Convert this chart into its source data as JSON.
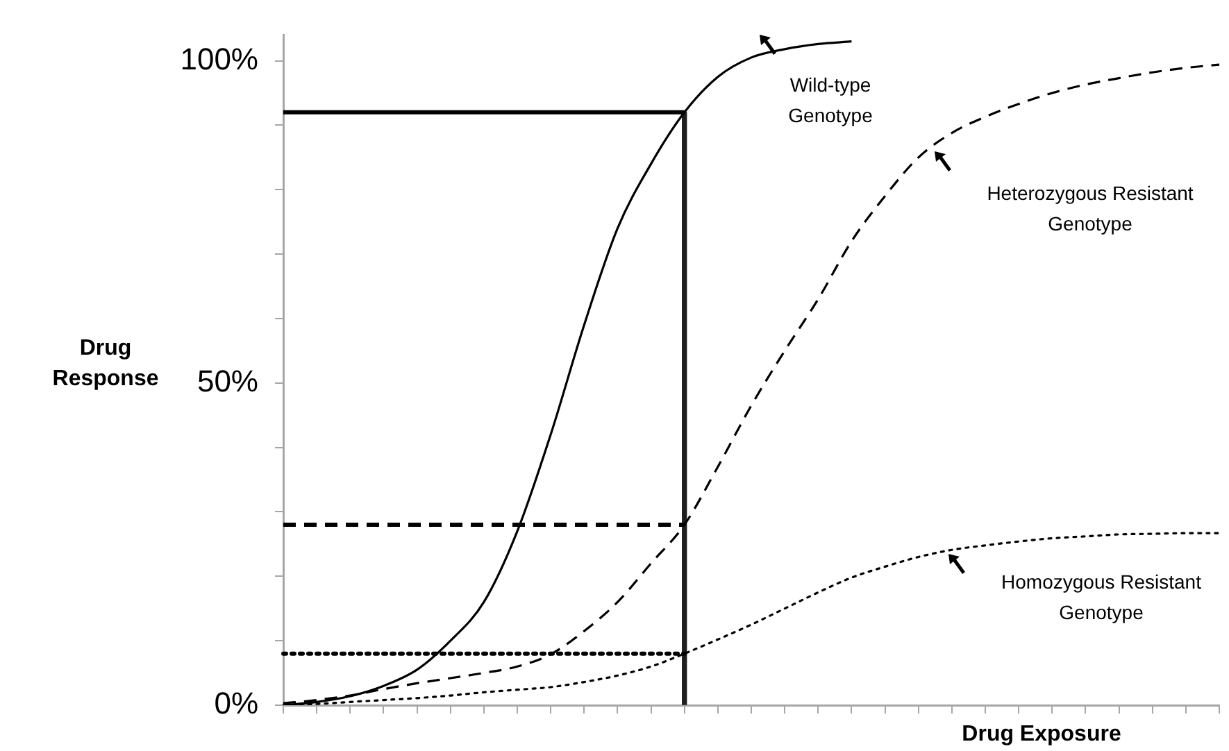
{
  "chart_data": {
    "type": "line",
    "xlabel": "Drug Exposure",
    "ylabel": "Drug Response",
    "categories": [
      null,
      null,
      null,
      null,
      null,
      null,
      null,
      null,
      null,
      null,
      null,
      null,
      null,
      null,
      null,
      null,
      null,
      null,
      null,
      null,
      null,
      null,
      null,
      null,
      null,
      null,
      null,
      null,
      null
    ],
    "ylim": [
      0,
      104
    ],
    "yticks": [
      {
        "value": 0,
        "label": "0%"
      },
      {
        "value": 10,
        "label": null
      },
      {
        "value": 20,
        "label": null
      },
      {
        "value": 30,
        "label": null
      },
      {
        "value": 40,
        "label": null
      },
      {
        "value": 50,
        "label": "50%"
      },
      {
        "value": 60,
        "label": null
      },
      {
        "value": 70,
        "label": null
      },
      {
        "value": 80,
        "label": null
      },
      {
        "value": 90,
        "label": null
      },
      {
        "value": 100,
        "label": "100%"
      }
    ],
    "grid": false,
    "legend": false,
    "marker": "none",
    "series": [
      {
        "color": "#000000",
        "line_style": "solid",
        "values": [
          0,
          0.5,
          1.4,
          3,
          5.5,
          10,
          16,
          27,
          42,
          59,
          74,
          84,
          92,
          97.5,
          100.5,
          101.8,
          102.6,
          103,
          null,
          null,
          null,
          null,
          null,
          null,
          null,
          null,
          null,
          null,
          null
        ]
      },
      {
        "color": "#000000",
        "line_style": "dashed",
        "values": [
          0.3,
          0.8,
          1.5,
          2.5,
          3.4,
          4.2,
          5,
          6,
          7.9,
          11.5,
          16,
          22,
          28,
          37,
          46.5,
          55,
          63,
          72,
          79,
          85,
          88.8,
          91.3,
          93.3,
          95,
          96.3,
          97.3,
          98.2,
          98.9,
          99.4
        ]
      },
      {
        "color": "#000000",
        "line_style": "dotted",
        "values": [
          0,
          0.2,
          0.5,
          0.8,
          1.1,
          1.5,
          2,
          2.4,
          2.8,
          3.6,
          4.6,
          6,
          8,
          10.2,
          12.5,
          15,
          17.5,
          19.8,
          21.5,
          23,
          24.1,
          24.8,
          25.4,
          25.9,
          26.2,
          26.5,
          26.6,
          26.7,
          26.7
        ]
      },
      {
        "color": "#000000",
        "line_style": "solid",
        "values": [
          92,
          92,
          92,
          92,
          92,
          92,
          92,
          92,
          92,
          92,
          92,
          92,
          92,
          null,
          null,
          null,
          null,
          null,
          null,
          null,
          null,
          null,
          null,
          null,
          null,
          null,
          null,
          null,
          null
        ]
      },
      {
        "color": "#000000",
        "line_style": "dashed",
        "values": [
          28,
          28,
          28,
          28,
          28,
          28,
          28,
          28,
          28,
          28,
          28,
          28,
          28,
          null,
          null,
          null,
          null,
          null,
          null,
          null,
          null,
          null,
          null,
          null,
          null,
          null,
          null,
          null,
          null
        ]
      },
      {
        "color": "#000000",
        "line_style": "dotted",
        "values": [
          8,
          8,
          8,
          8,
          8,
          8,
          8,
          8,
          8,
          8,
          8,
          8,
          8,
          null,
          null,
          null,
          null,
          null,
          null,
          null,
          null,
          null,
          null,
          null,
          null,
          null,
          null,
          null,
          null
        ]
      },
      {
        "type": "bar",
        "color": "#1e1e1e",
        "values": [
          null,
          null,
          null,
          null,
          null,
          null,
          null,
          null,
          null,
          null,
          null,
          null,
          92,
          null,
          null,
          null,
          null,
          null,
          null,
          null,
          null,
          null,
          null,
          null,
          null,
          null,
          null,
          null,
          null
        ]
      }
    ],
    "annotations": [
      "Wild-type Genotype",
      "Heterozygous Resistant Genotype",
      "Homozygous Resistant Genotype"
    ]
  }
}
